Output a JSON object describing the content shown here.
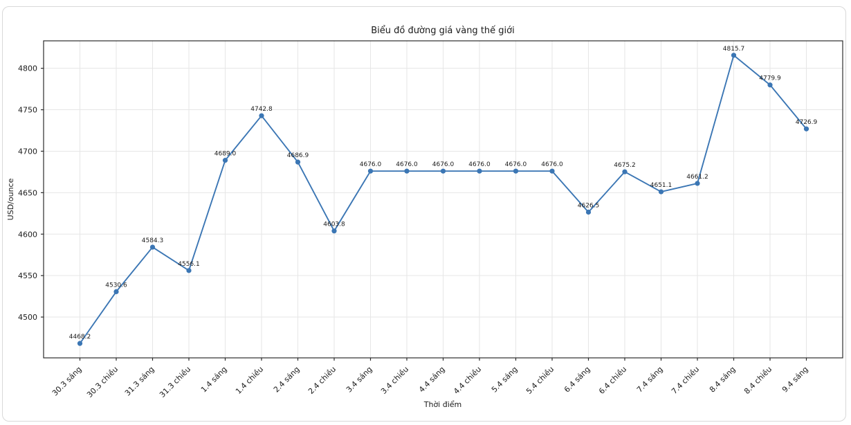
{
  "chart_data": {
    "type": "line",
    "title": "Biểu đồ đường giá vàng thế giới",
    "xlabel": "Thời điểm",
    "ylabel": "USD/ounce",
    "categories": [
      "30.3 sáng",
      "30.3 chiều",
      "31.3 sáng",
      "31.3 chiều",
      "1.4 sáng",
      "1.4 chiều",
      "2.4 sáng",
      "2.4 chiều",
      "3.4 sáng",
      "3.4 chiều",
      "4.4 sáng",
      "4.4 chiều",
      "5.4 sáng",
      "5.4 chiều",
      "6.4 sáng",
      "6.4 chiều",
      "7.4 sáng",
      "7.4 chiều",
      "8.4 sáng",
      "8.4 chiều",
      "9.4 sáng"
    ],
    "values": [
      4468.2,
      4530.6,
      4584.3,
      4556.1,
      4689.0,
      4742.8,
      4686.9,
      4603.8,
      4676.0,
      4676.0,
      4676.0,
      4676.0,
      4676.0,
      4676.0,
      4626.5,
      4675.2,
      4651.1,
      4661.2,
      4815.7,
      4779.9,
      4726.9
    ],
    "data_labels": [
      "4468.2",
      "4530.6",
      "4584.3",
      "4556.1",
      "4689.0",
      "4742.8",
      "4686.9",
      "4603.8",
      "4676.0",
      "4676.0",
      "4676.0",
      "4676.0",
      "4676.0",
      "4676.0",
      "4626.5",
      "4675.2",
      "4651.1",
      "4661.2",
      "4815.7",
      "4779.9",
      "4726.9"
    ],
    "yticks": [
      4500,
      4550,
      4600,
      4650,
      4700,
      4750,
      4800
    ],
    "ylim": [
      4450.8,
      4833.1
    ],
    "grid": true,
    "legend_position": "none",
    "line_color": "#3b76b4",
    "marker": "circle",
    "grid_color": "#e6e6e6",
    "spine_color": "#2b2b2b",
    "label_color": "#1a1a1a",
    "background_color": "#ffffff"
  }
}
